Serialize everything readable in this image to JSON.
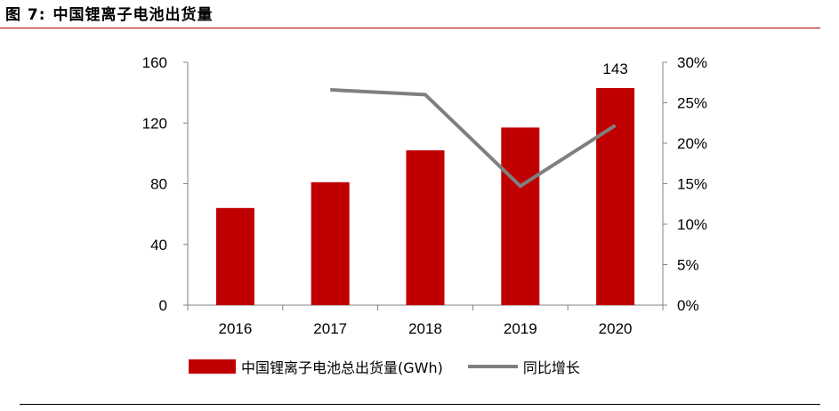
{
  "figure": {
    "label": "图 7:",
    "title": "中国锂离子电池出货量"
  },
  "chart_data": {
    "type": "bar",
    "categories": [
      "2016",
      "2017",
      "2018",
      "2019",
      "2020"
    ],
    "series": [
      {
        "name": "中国锂离子电池总出货量(GWh)",
        "type": "bar",
        "axis": "left",
        "values": [
          64,
          81,
          102,
          117,
          143
        ],
        "color": "#c00000",
        "data_labels": [
          null,
          null,
          null,
          null,
          "143"
        ]
      },
      {
        "name": "同比增长",
        "type": "line",
        "axis": "right",
        "values": [
          null,
          0.266,
          0.26,
          0.147,
          0.222
        ],
        "color": "#7f7f7f"
      }
    ],
    "y_left": {
      "lim": [
        0,
        160
      ],
      "ticks": [
        "0",
        "40",
        "80",
        "120",
        "160"
      ]
    },
    "y_right": {
      "lim": [
        0,
        0.3
      ],
      "ticks": [
        "0%",
        "5%",
        "10%",
        "15%",
        "20%",
        "25%",
        "30%"
      ]
    },
    "legend_position": "bottom",
    "grid": false
  }
}
